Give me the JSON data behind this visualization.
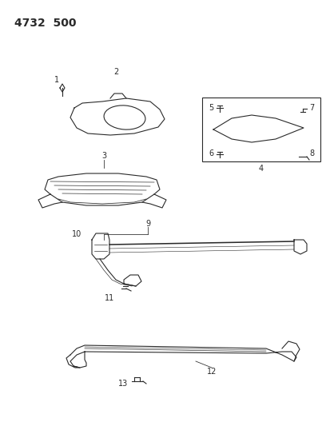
{
  "title": "4732  500",
  "bg_color": "#ffffff",
  "line_color": "#2a2a2a",
  "title_fontsize": 10,
  "label_fontsize": 7,
  "figsize": [
    4.08,
    5.33
  ],
  "dpi": 100
}
